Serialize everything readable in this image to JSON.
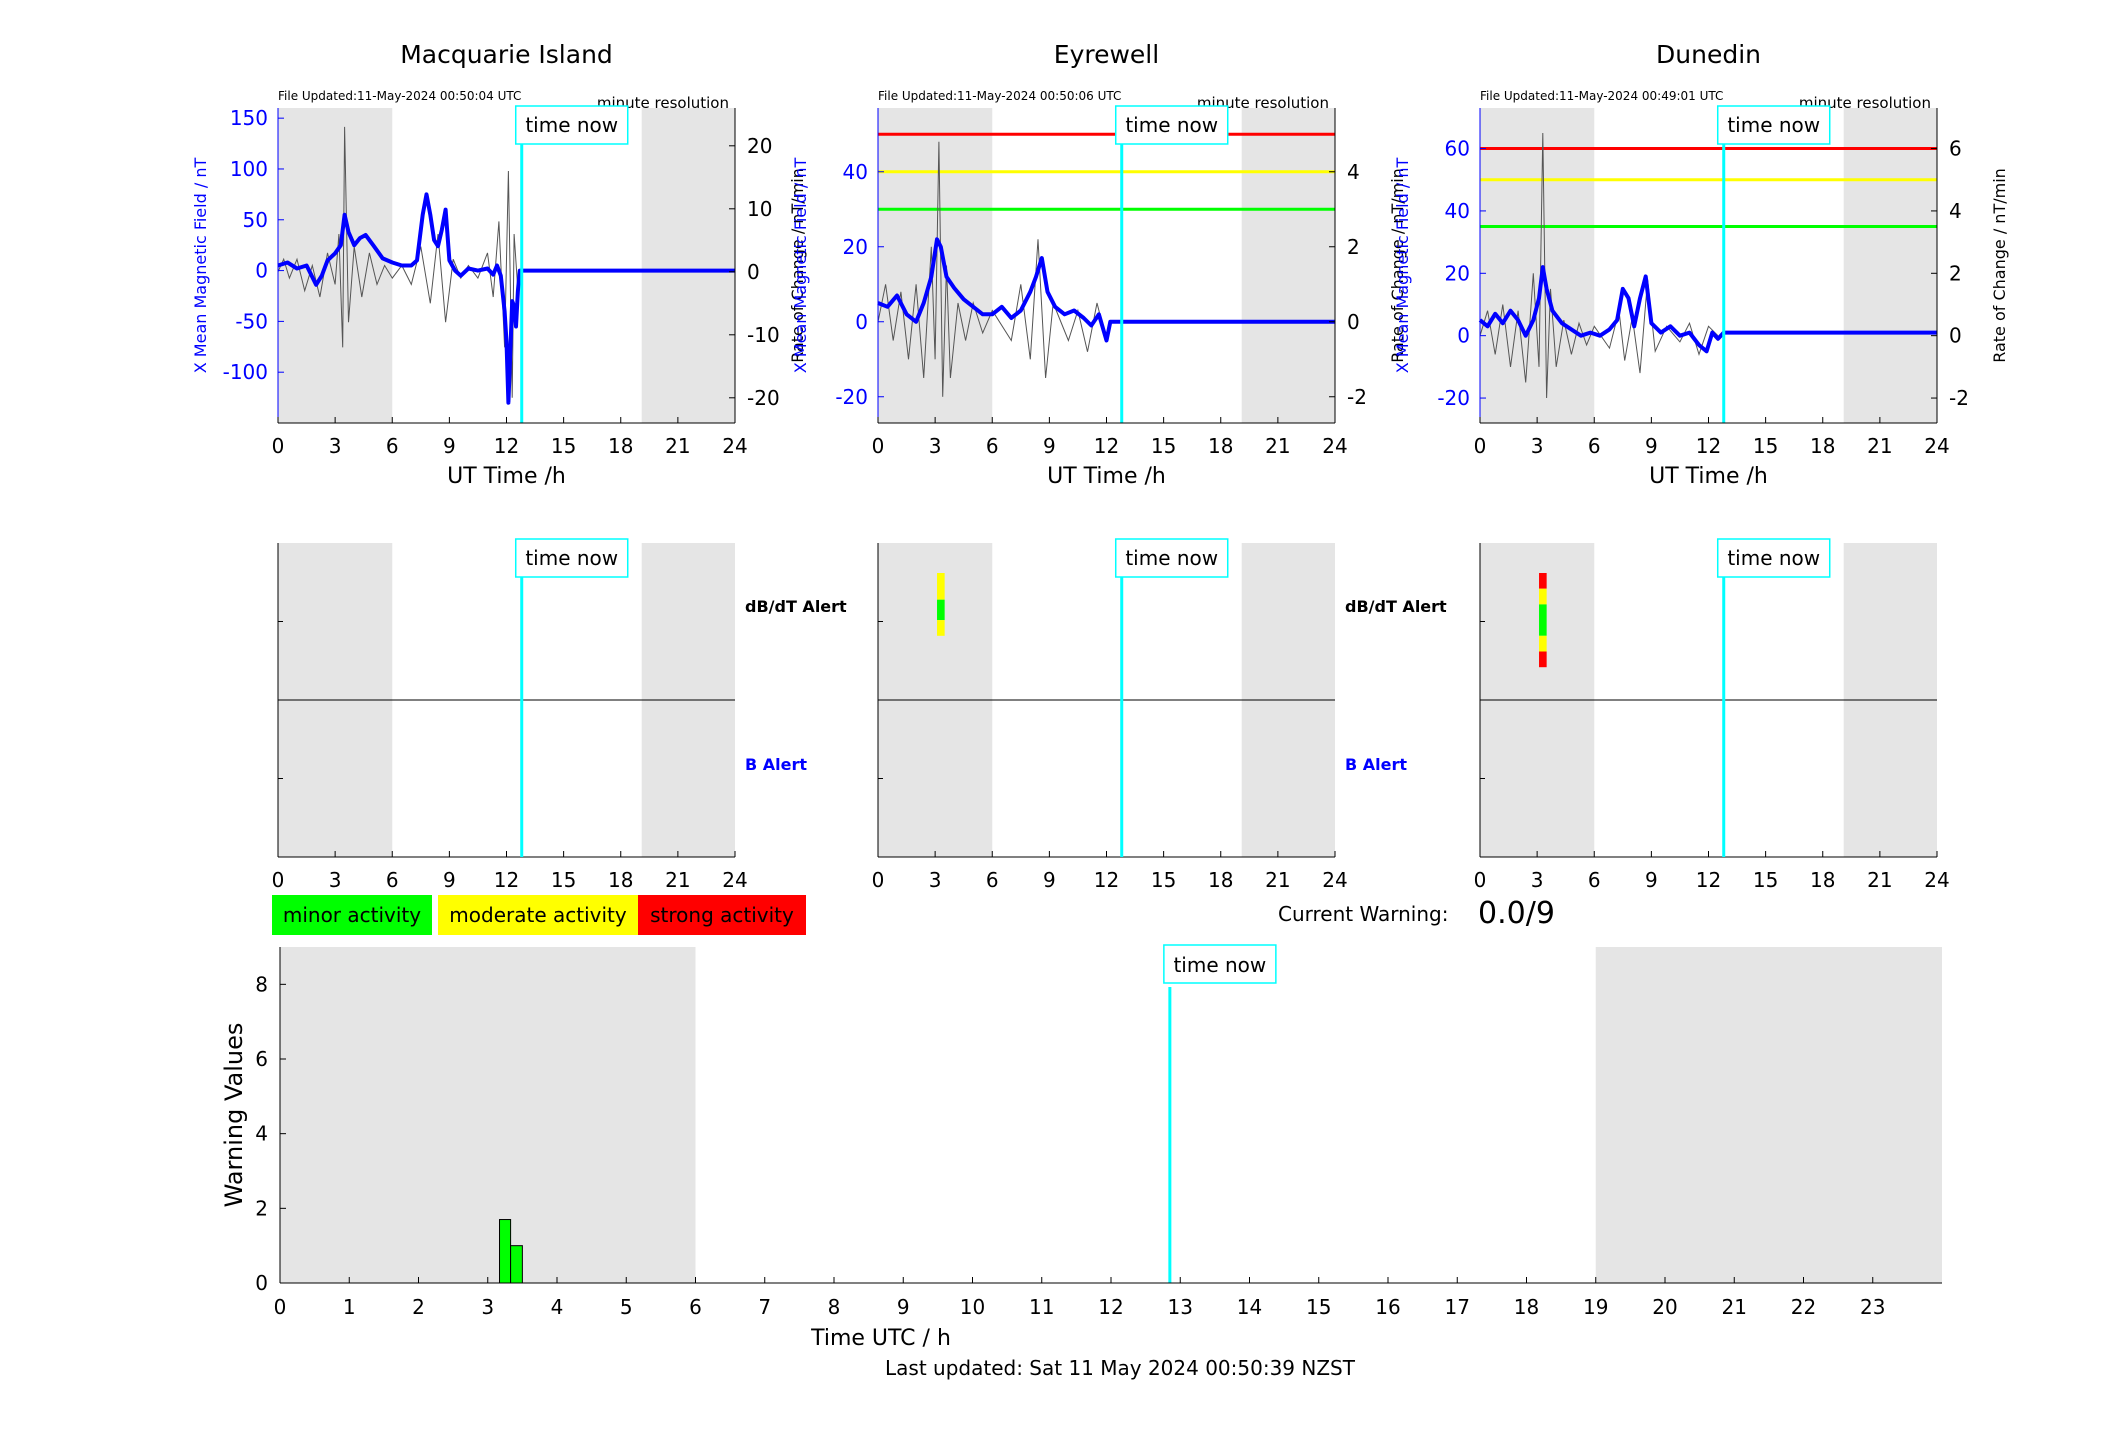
{
  "colors": {
    "x_field": "#0000ff",
    "rate": "#555555",
    "now_line": "#00ffff",
    "night_shade": "#e5e5e5",
    "minor": "#00ff00",
    "moderate": "#ffff00",
    "strong": "#ff0000"
  },
  "stations": [
    {
      "name": "Macquarie Island",
      "file_updated": "File Updated:11-May-2024 00:50:04 UTC",
      "resolution": "minute resolution",
      "y_left_label": "X Mean Magnetic Field / nT",
      "y_right_label": "Rate of Change / nT/min",
      "x_label": "UT Time /h",
      "now_label": "time now",
      "alert_db_label": "dB/dT Alert",
      "alert_b_label": "B Alert",
      "xlim": [
        0,
        24
      ],
      "xticks": [
        0,
        3,
        6,
        9,
        12,
        15,
        18,
        21,
        24
      ],
      "ylim_left": [
        -150,
        160
      ],
      "yticks_left": [
        -100,
        -50,
        0,
        50,
        100,
        150
      ],
      "ylim_right": [
        -24,
        26
      ],
      "yticks_right": [
        -20,
        -10,
        0,
        10,
        20
      ],
      "thresholds": [],
      "night_shading": [
        [
          0,
          6
        ],
        [
          19.1,
          24
        ]
      ],
      "now_hour": 12.8,
      "x_mean_field": [
        [
          0,
          5
        ],
        [
          0.5,
          8
        ],
        [
          1,
          2
        ],
        [
          1.5,
          5
        ],
        [
          2,
          -14
        ],
        [
          2.3,
          -5
        ],
        [
          2.6,
          10
        ],
        [
          3,
          17
        ],
        [
          3.3,
          25
        ],
        [
          3.5,
          55
        ],
        [
          3.7,
          38
        ],
        [
          4,
          25
        ],
        [
          4.3,
          32
        ],
        [
          4.6,
          35
        ],
        [
          5,
          25
        ],
        [
          5.5,
          12
        ],
        [
          6,
          8
        ],
        [
          6.5,
          5
        ],
        [
          7,
          5
        ],
        [
          7.3,
          10
        ],
        [
          7.6,
          55
        ],
        [
          7.8,
          75
        ],
        [
          8,
          55
        ],
        [
          8.2,
          30
        ],
        [
          8.4,
          24
        ],
        [
          8.6,
          40
        ],
        [
          8.8,
          60
        ],
        [
          9,
          10
        ],
        [
          9.3,
          0
        ],
        [
          9.6,
          -5
        ],
        [
          10,
          2
        ],
        [
          10.5,
          0
        ],
        [
          11,
          2
        ],
        [
          11.3,
          -4
        ],
        [
          11.5,
          5
        ],
        [
          11.7,
          -5
        ],
        [
          11.9,
          -40
        ],
        [
          12,
          -70
        ],
        [
          12.1,
          -130
        ],
        [
          12.2,
          -80
        ],
        [
          12.3,
          -30
        ],
        [
          12.4,
          -35
        ],
        [
          12.5,
          -55
        ],
        [
          12.6,
          -20
        ],
        [
          12.7,
          0
        ],
        [
          12.8,
          0
        ],
        [
          24,
          0
        ]
      ],
      "rate_of_change": [
        [
          0,
          0
        ],
        [
          0.3,
          2
        ],
        [
          0.6,
          -1
        ],
        [
          1,
          2
        ],
        [
          1.4,
          -3
        ],
        [
          1.8,
          1
        ],
        [
          2.2,
          -4
        ],
        [
          2.6,
          3
        ],
        [
          3,
          -2
        ],
        [
          3.2,
          6
        ],
        [
          3.4,
          -12
        ],
        [
          3.5,
          23
        ],
        [
          3.7,
          -8
        ],
        [
          4,
          4
        ],
        [
          4.4,
          -4
        ],
        [
          4.8,
          3
        ],
        [
          5.2,
          -2
        ],
        [
          5.6,
          1
        ],
        [
          6,
          -1
        ],
        [
          6.5,
          1
        ],
        [
          7,
          -2
        ],
        [
          7.5,
          4
        ],
        [
          8,
          -5
        ],
        [
          8.4,
          6
        ],
        [
          8.8,
          -8
        ],
        [
          9.2,
          2
        ],
        [
          9.6,
          -1
        ],
        [
          10,
          1
        ],
        [
          10.5,
          -1
        ],
        [
          11,
          3
        ],
        [
          11.3,
          -4
        ],
        [
          11.6,
          8
        ],
        [
          11.9,
          -12
        ],
        [
          12.1,
          16
        ],
        [
          12.3,
          -20
        ],
        [
          12.4,
          6
        ],
        [
          12.6,
          -3
        ],
        [
          12.7,
          0
        ]
      ],
      "alert_segments": []
    },
    {
      "name": "Eyrewell",
      "file_updated": "File Updated:11-May-2024 00:50:06 UTC",
      "resolution": "minute resolution",
      "y_left_label": "X Mean Magnetic Field / nT",
      "y_right_label": "Rate of Change / nT/min",
      "x_label": "UT Time /h",
      "now_label": "time now",
      "alert_db_label": "dB/dT Alert",
      "alert_b_label": "B Alert",
      "xlim": [
        0,
        24
      ],
      "xticks": [
        0,
        3,
        6,
        9,
        12,
        15,
        18,
        21,
        24
      ],
      "ylim_left": [
        -27,
        57
      ],
      "yticks_left": [
        -20,
        0,
        20,
        40
      ],
      "ylim_right": [
        -2.7,
        5.7
      ],
      "yticks_right": [
        -2,
        0,
        2,
        4
      ],
      "thresholds": [
        {
          "value": 50,
          "color": "#ff0000"
        },
        {
          "value": 40,
          "color": "#ffff00"
        },
        {
          "value": 30,
          "color": "#00ff00"
        }
      ],
      "night_shading": [
        [
          0,
          6
        ],
        [
          19.1,
          24
        ]
      ],
      "now_hour": 12.8,
      "x_mean_field": [
        [
          0,
          5
        ],
        [
          0.5,
          4
        ],
        [
          1,
          7
        ],
        [
          1.5,
          2
        ],
        [
          2,
          0
        ],
        [
          2.4,
          5
        ],
        [
          2.8,
          12
        ],
        [
          3.1,
          22
        ],
        [
          3.3,
          20
        ],
        [
          3.6,
          12
        ],
        [
          4,
          9
        ],
        [
          4.5,
          6
        ],
        [
          5,
          4
        ],
        [
          5.5,
          2
        ],
        [
          6,
          2
        ],
        [
          6.5,
          4
        ],
        [
          7,
          1
        ],
        [
          7.5,
          3
        ],
        [
          8,
          8
        ],
        [
          8.3,
          12
        ],
        [
          8.6,
          17
        ],
        [
          8.9,
          8
        ],
        [
          9.3,
          4
        ],
        [
          9.8,
          2
        ],
        [
          10.3,
          3
        ],
        [
          10.8,
          1
        ],
        [
          11.2,
          -1
        ],
        [
          11.6,
          2
        ],
        [
          12,
          -5
        ],
        [
          12.2,
          0
        ],
        [
          24,
          0
        ]
      ],
      "rate_of_change": [
        [
          0,
          0
        ],
        [
          0.4,
          1
        ],
        [
          0.8,
          -0.5
        ],
        [
          1.2,
          0.8
        ],
        [
          1.6,
          -1
        ],
        [
          2,
          1
        ],
        [
          2.4,
          -1.5
        ],
        [
          2.8,
          2
        ],
        [
          3,
          -1
        ],
        [
          3.2,
          4.8
        ],
        [
          3.4,
          -2
        ],
        [
          3.6,
          1.5
        ],
        [
          3.8,
          -1.5
        ],
        [
          4.2,
          0.5
        ],
        [
          4.6,
          -0.5
        ],
        [
          5,
          0.5
        ],
        [
          5.5,
          -0.3
        ],
        [
          6,
          0.3
        ],
        [
          7,
          -0.5
        ],
        [
          7.5,
          1
        ],
        [
          8,
          -1
        ],
        [
          8.4,
          2.2
        ],
        [
          8.8,
          -1.5
        ],
        [
          9.2,
          0.5
        ],
        [
          10,
          -0.5
        ],
        [
          10.5,
          0.3
        ],
        [
          11,
          -0.8
        ],
        [
          11.5,
          0.5
        ],
        [
          12,
          -0.5
        ],
        [
          12.2,
          0
        ]
      ],
      "alert_segments": [
        {
          "from": 0.83,
          "to": 1.0,
          "color": "#ffff00"
        },
        {
          "from": 0.7,
          "to": 0.83,
          "color": "#00ff00"
        },
        {
          "from": 0.6,
          "to": 0.7,
          "color": "#ffff00"
        }
      ]
    },
    {
      "name": "Dunedin",
      "file_updated": "File Updated:11-May-2024 00:49:01 UTC",
      "resolution": "minute resolution",
      "y_left_label": "X Mean Magnetic Field / nT",
      "y_right_label": "Rate of Change / nT/min",
      "x_label": "UT Time /h",
      "now_label": "time now",
      "alert_db_label": "dB/dT Alert",
      "alert_b_label": "B Alert",
      "xlim": [
        0,
        24
      ],
      "xticks": [
        0,
        3,
        6,
        9,
        12,
        15,
        18,
        21,
        24
      ],
      "ylim_left": [
        -28,
        73
      ],
      "yticks_left": [
        -20,
        0,
        20,
        40,
        60
      ],
      "ylim_right": [
        -2.8,
        7.3
      ],
      "yticks_right": [
        -2,
        0,
        2,
        4,
        6
      ],
      "thresholds": [
        {
          "value": 60,
          "color": "#ff0000"
        },
        {
          "value": 50,
          "color": "#ffff00"
        },
        {
          "value": 35,
          "color": "#00ff00"
        }
      ],
      "night_shading": [
        [
          0,
          6
        ],
        [
          19.1,
          24
        ]
      ],
      "now_hour": 12.8,
      "x_mean_field": [
        [
          0,
          5
        ],
        [
          0.4,
          3
        ],
        [
          0.8,
          7
        ],
        [
          1.2,
          4
        ],
        [
          1.6,
          8
        ],
        [
          2,
          5
        ],
        [
          2.4,
          0
        ],
        [
          2.8,
          5
        ],
        [
          3.1,
          12
        ],
        [
          3.3,
          22
        ],
        [
          3.5,
          15
        ],
        [
          3.8,
          8
        ],
        [
          4.3,
          4
        ],
        [
          4.8,
          2
        ],
        [
          5.3,
          0
        ],
        [
          5.8,
          1
        ],
        [
          6.3,
          0
        ],
        [
          6.8,
          2
        ],
        [
          7.2,
          5
        ],
        [
          7.5,
          15
        ],
        [
          7.8,
          12
        ],
        [
          8.1,
          3
        ],
        [
          8.4,
          12
        ],
        [
          8.7,
          19
        ],
        [
          9,
          4
        ],
        [
          9.5,
          1
        ],
        [
          10,
          3
        ],
        [
          10.5,
          0
        ],
        [
          11,
          1
        ],
        [
          11.5,
          -3
        ],
        [
          11.9,
          -5
        ],
        [
          12.2,
          1
        ],
        [
          12.5,
          -1
        ],
        [
          12.8,
          1
        ],
        [
          24,
          1
        ]
      ],
      "rate_of_change": [
        [
          0,
          0
        ],
        [
          0.4,
          0.8
        ],
        [
          0.8,
          -0.6
        ],
        [
          1.2,
          1
        ],
        [
          1.6,
          -1
        ],
        [
          2,
          0.8
        ],
        [
          2.4,
          -1.5
        ],
        [
          2.8,
          2
        ],
        [
          3.1,
          -1
        ],
        [
          3.3,
          6.5
        ],
        [
          3.5,
          -2
        ],
        [
          3.7,
          1.5
        ],
        [
          4,
          -1
        ],
        [
          4.4,
          0.5
        ],
        [
          4.8,
          -0.6
        ],
        [
          5.2,
          0.4
        ],
        [
          5.6,
          -0.3
        ],
        [
          6,
          0.3
        ],
        [
          6.8,
          -0.4
        ],
        [
          7.3,
          0.8
        ],
        [
          7.6,
          -0.8
        ],
        [
          8,
          0.6
        ],
        [
          8.4,
          -1.2
        ],
        [
          8.8,
          1.8
        ],
        [
          9.2,
          -0.5
        ],
        [
          9.8,
          0.3
        ],
        [
          10.5,
          -0.2
        ],
        [
          11,
          0.4
        ],
        [
          11.5,
          -0.6
        ],
        [
          12,
          0.3
        ],
        [
          12.5,
          0
        ]
      ],
      "alert_segments": [
        {
          "from": 0.9,
          "to": 1.0,
          "color": "#ff0000"
        },
        {
          "from": 0.8,
          "to": 0.9,
          "color": "#ffff00"
        },
        {
          "from": 0.6,
          "to": 0.8,
          "color": "#00ff00"
        },
        {
          "from": 0.5,
          "to": 0.6,
          "color": "#ffff00"
        },
        {
          "from": 0.4,
          "to": 0.5,
          "color": "#ff0000"
        }
      ]
    }
  ],
  "legend": {
    "minor": "minor activity",
    "moderate": "moderate activity",
    "strong": "strong activity"
  },
  "current_warning": {
    "label": "Current Warning:",
    "value": "0.0/9"
  },
  "chart_data": {
    "type": "bar",
    "xlabel": "Time UTC / h",
    "ylabel": "Warning Values",
    "xlim": [
      0,
      24
    ],
    "xticks": [
      0,
      1,
      2,
      3,
      4,
      5,
      6,
      7,
      8,
      9,
      10,
      11,
      12,
      13,
      14,
      15,
      16,
      17,
      18,
      19,
      20,
      21,
      22,
      23
    ],
    "ylim": [
      0,
      9
    ],
    "yticks": [
      0,
      2,
      4,
      6,
      8
    ],
    "night_shading": [
      [
        0,
        6
      ],
      [
        19,
        24
      ]
    ],
    "now_hour": 12.85,
    "now_label": "time now",
    "bars": [
      {
        "x_start": 3.17,
        "x_end": 3.33,
        "value": 1.7
      },
      {
        "x_start": 3.33,
        "x_end": 3.5,
        "value": 1.0
      }
    ]
  },
  "footer": "Last updated: Sat 11 May 2024 00:50:39 NZST"
}
